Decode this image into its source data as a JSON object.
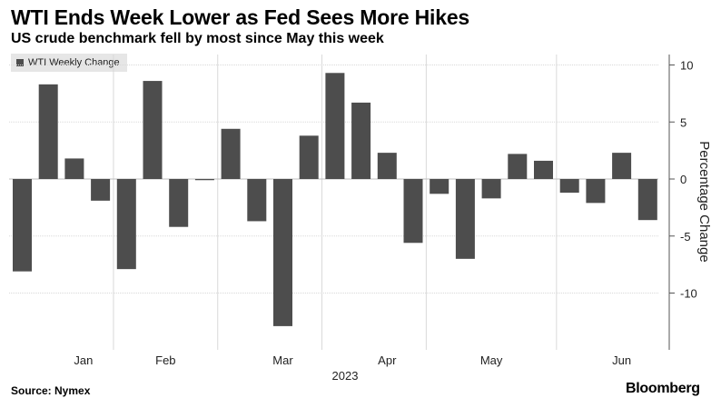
{
  "title": "WTI Ends Week Lower as Fed Sees More Hikes",
  "subtitle": "US crude benchmark fell by most since May this week",
  "source": "Source: Nymex",
  "brand": "Bloomberg",
  "colors": {
    "bar": "#4d4d4d",
    "grid": "#d9d9d9",
    "axis": "#555555"
  },
  "chart_data": {
    "type": "bar",
    "title": "WTI Ends Week Lower as Fed Sees More Hikes",
    "subtitle": "US crude benchmark fell by most since May this week",
    "legend": [
      "WTI Weekly Change"
    ],
    "legend_position": "top-left",
    "ylabel": "Percentage Change",
    "xlabel": "2023",
    "ylim": [
      -15,
      11
    ],
    "yticks": [
      10,
      5,
      0,
      -5,
      -10
    ],
    "grid": true,
    "values": [
      -8.1,
      8.3,
      1.8,
      -1.9,
      -7.9,
      8.6,
      -4.2,
      -0.1,
      4.4,
      -3.7,
      -12.9,
      3.8,
      9.3,
      6.7,
      2.3,
      -5.6,
      -1.3,
      -7.0,
      -1.7,
      2.2,
      1.6,
      -1.2,
      -2.1,
      2.3,
      -3.6
    ],
    "month_labels": [
      "Jan",
      "Feb",
      "Mar",
      "Apr",
      "May",
      "Jun"
    ],
    "month_label_bar_index": [
      2,
      5.5,
      10,
      14,
      18,
      23
    ],
    "month_boundaries_after_bar": [
      3.5,
      7.5,
      11.5,
      15.5,
      20.5
    ]
  }
}
